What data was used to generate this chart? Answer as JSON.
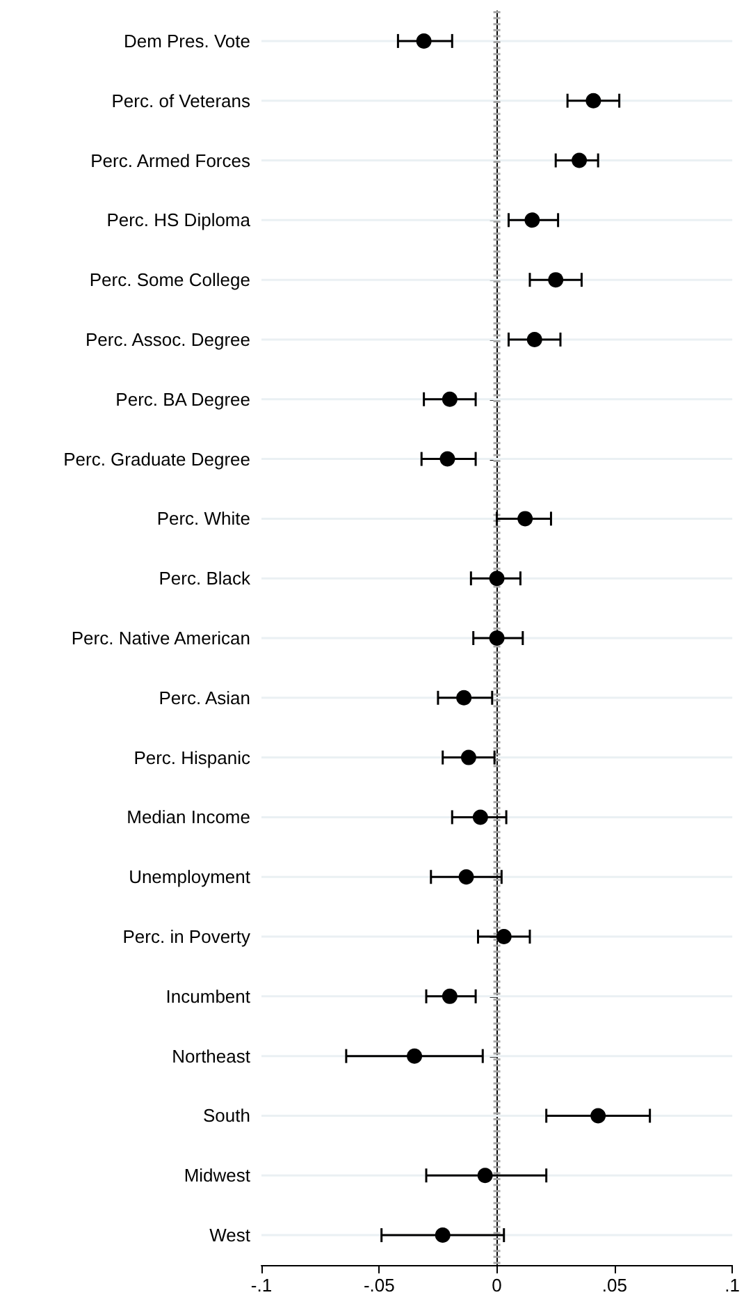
{
  "chart_data": {
    "type": "scatter",
    "orientation": "horizontal",
    "categories": [
      "Dem Pres. Vote",
      "Perc. of Veterans",
      "Perc. Armed Forces",
      "Perc. HS Diploma",
      "Perc. Some College",
      "Perc. Assoc. Degree",
      "Perc. BA Degree",
      "Perc. Graduate Degree",
      "Perc. White",
      "Perc. Black",
      "Perc. Native American",
      "Perc. Asian",
      "Perc. Hispanic",
      "Median Income",
      "Unemployment",
      "Perc. in Poverty",
      "Incumbent",
      "Northeast",
      "South",
      "Midwest",
      "West"
    ],
    "series": [
      {
        "color": "#000000",
        "values": [
          -0.031,
          0.041,
          0.035,
          0.015,
          0.025,
          0.016,
          -0.02,
          -0.021,
          0.012,
          0.0,
          0.0,
          -0.014,
          -0.012,
          -0.007,
          -0.013,
          0.003,
          -0.02,
          -0.035,
          0.043,
          -0.005,
          -0.023
        ],
        "errors": [
          [
            -0.042,
            -0.019
          ],
          [
            0.03,
            0.052
          ],
          [
            0.025,
            0.043
          ],
          [
            0.005,
            0.026
          ],
          [
            0.014,
            0.036
          ],
          [
            0.005,
            0.027
          ],
          [
            -0.031,
            -0.009
          ],
          [
            -0.032,
            -0.009
          ],
          [
            0.0,
            0.023
          ],
          [
            -0.011,
            0.01
          ],
          [
            -0.01,
            0.011
          ],
          [
            -0.025,
            -0.002
          ],
          [
            -0.023,
            -0.001
          ],
          [
            -0.019,
            0.004
          ],
          [
            -0.028,
            0.002
          ],
          [
            -0.008,
            0.014
          ],
          [
            -0.03,
            -0.009
          ],
          [
            -0.064,
            -0.006
          ],
          [
            0.021,
            0.065
          ],
          [
            -0.03,
            0.021
          ],
          [
            -0.049,
            0.003
          ]
        ]
      }
    ],
    "xlim": [
      -0.1,
      0.1
    ],
    "xticks": [
      {
        "value": -0.1,
        "label": "-.1"
      },
      {
        "value": -0.05,
        "label": "-.05"
      },
      0,
      {
        "value": 0.05,
        "label": ".05"
      },
      {
        "value": 0.1,
        "label": ".1"
      }
    ],
    "ref_lines": [
      {
        "axis": "x",
        "value": 0,
        "color": "#a8a8a8",
        "line_style": "dashed"
      }
    ],
    "grid": "y",
    "marker": "circle"
  }
}
